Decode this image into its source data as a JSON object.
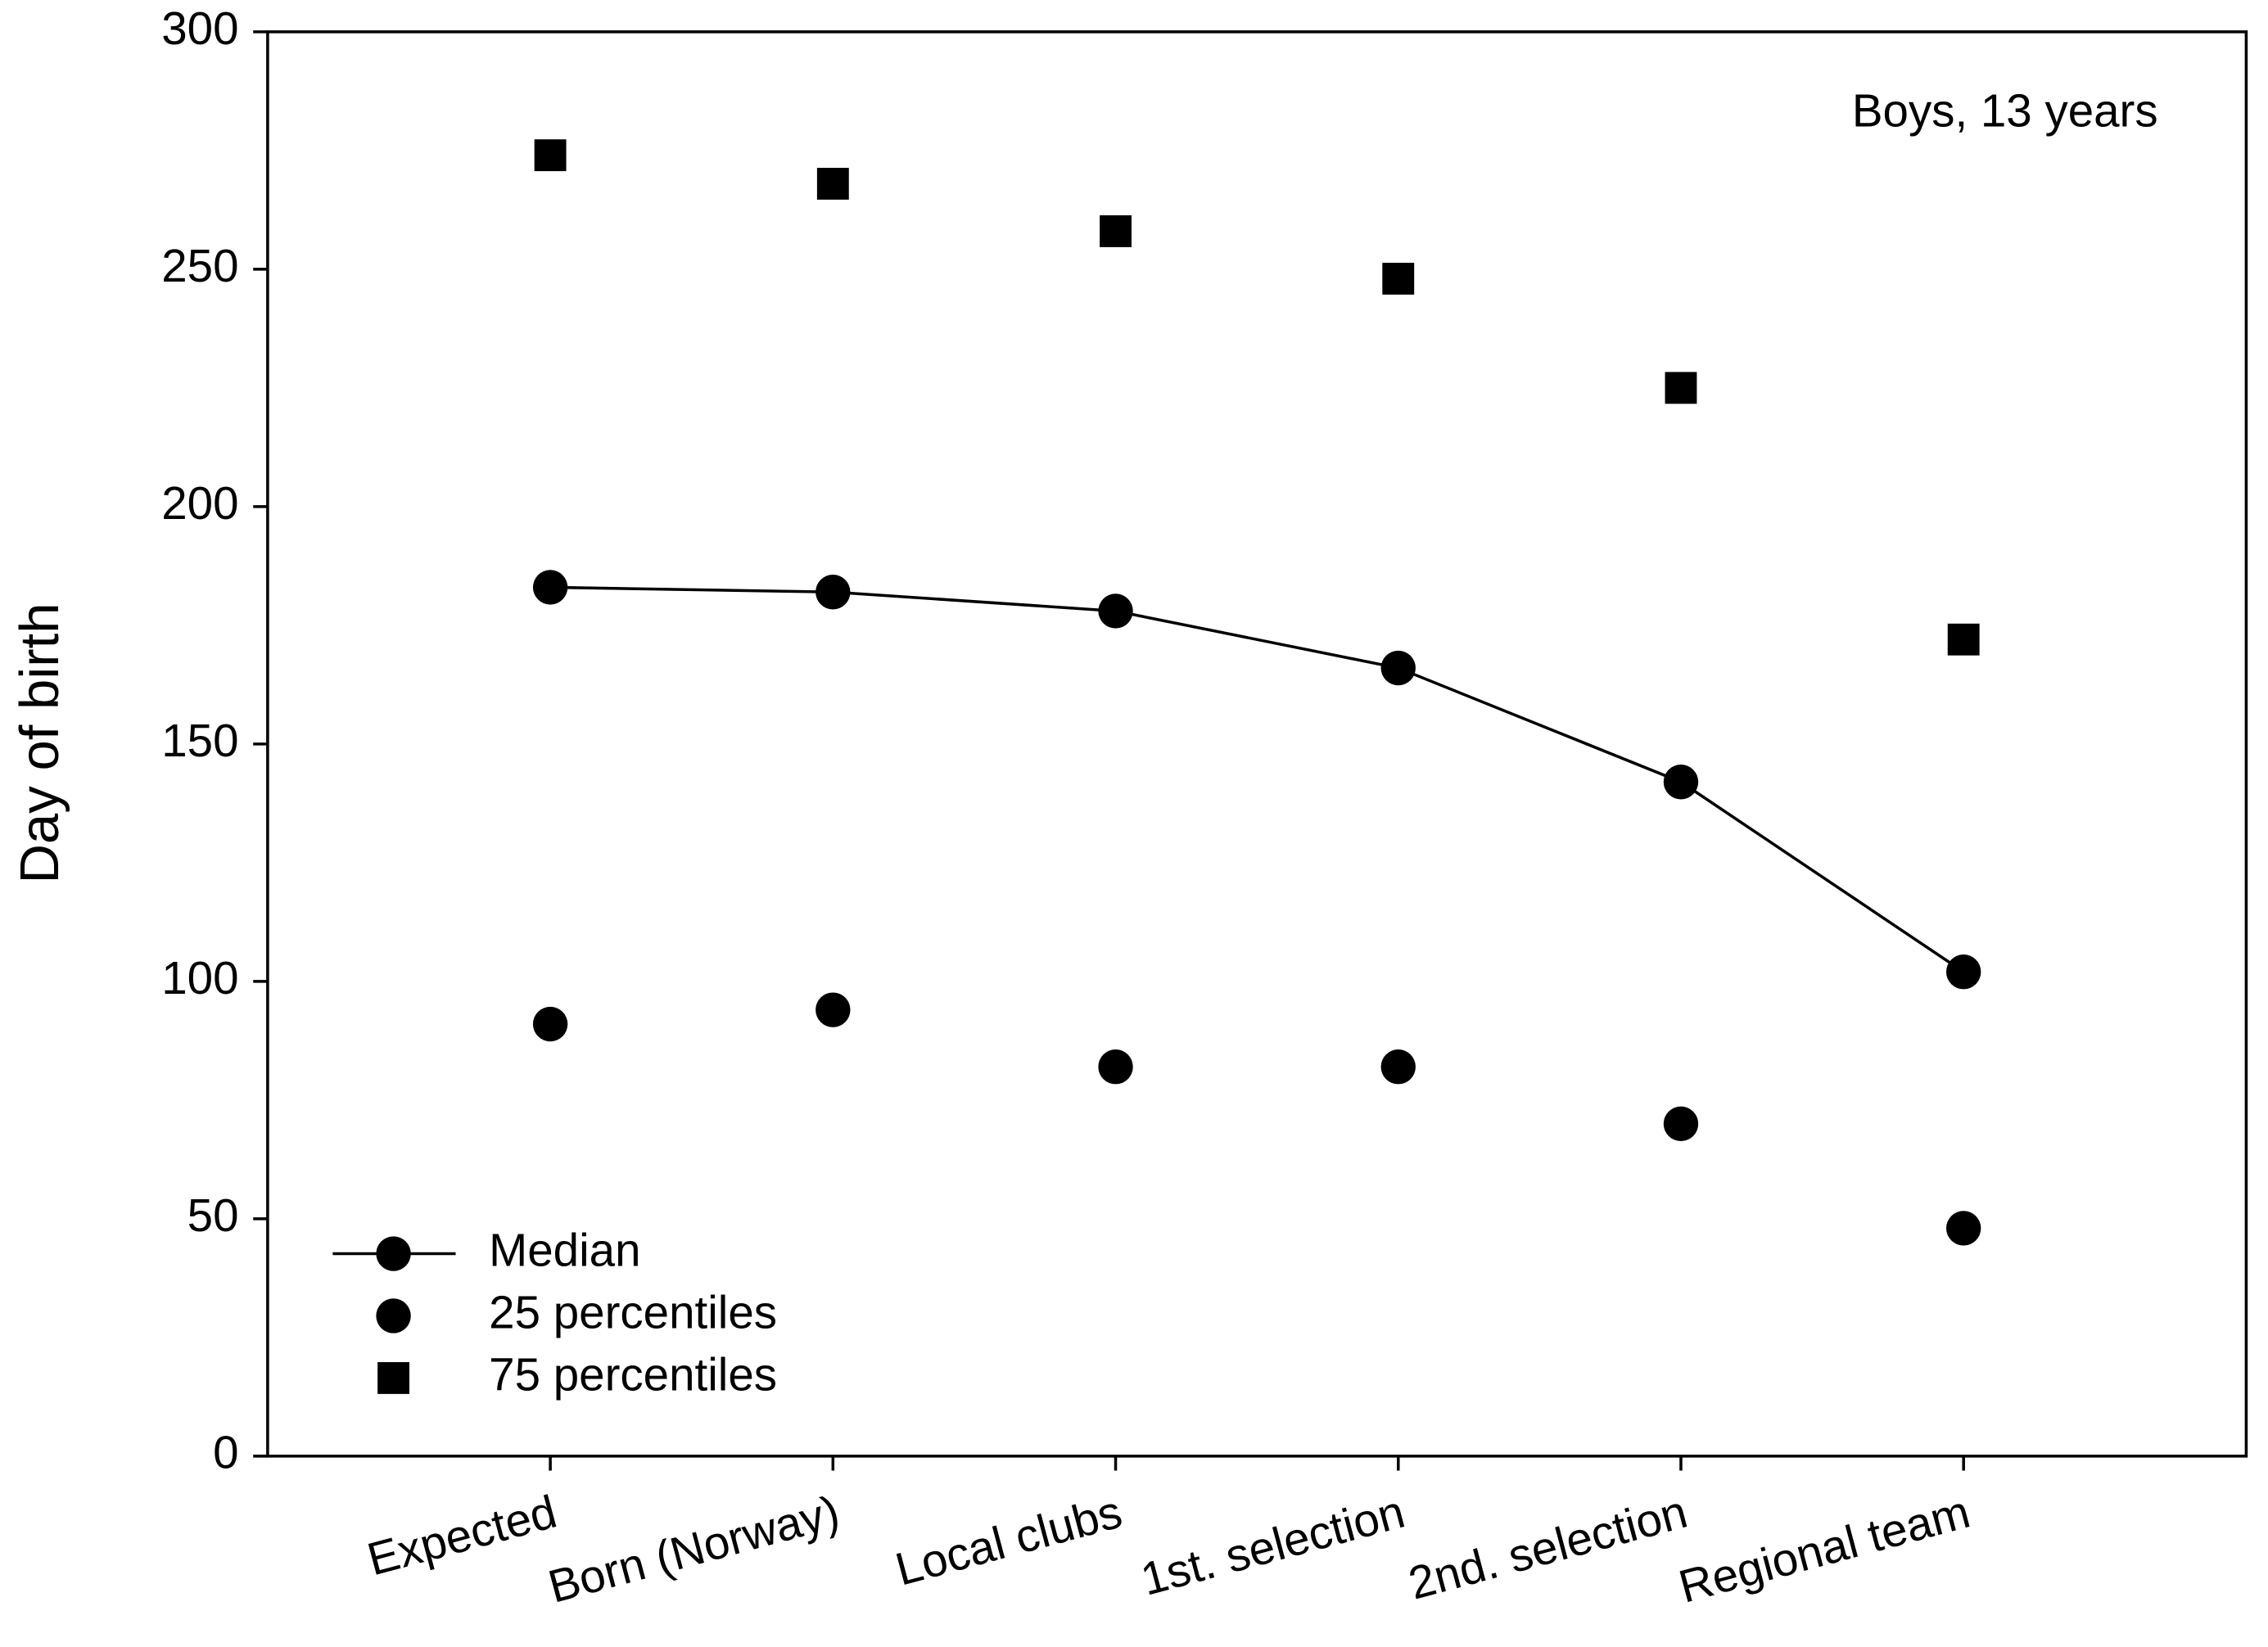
{
  "chart_data": {
    "type": "scatter",
    "annotation": "Boys, 13 years",
    "y_label": "Day of birth",
    "categories": [
      "Expected",
      "Born (Norway)",
      "Local clubs",
      "1st. selection",
      "2nd. selection",
      "Regional team"
    ],
    "series": [
      {
        "name": "Median",
        "color": "#000000",
        "marker": "circle",
        "line": true,
        "values": [
          183,
          182,
          178,
          166,
          142,
          102
        ]
      },
      {
        "name": "25 percentiles",
        "color": "#000000",
        "marker": "circle",
        "line": false,
        "values": [
          91,
          94,
          82,
          82,
          70,
          48
        ]
      },
      {
        "name": "75 percentiles",
        "color": "#000000",
        "marker": "square",
        "line": false,
        "values": [
          274,
          268,
          258,
          248,
          225,
          172
        ]
      }
    ],
    "ylim": [
      0,
      300
    ],
    "yticks": [
      0,
      50,
      100,
      150,
      200,
      250,
      300
    ],
    "grid": false,
    "legend": "lower left"
  }
}
